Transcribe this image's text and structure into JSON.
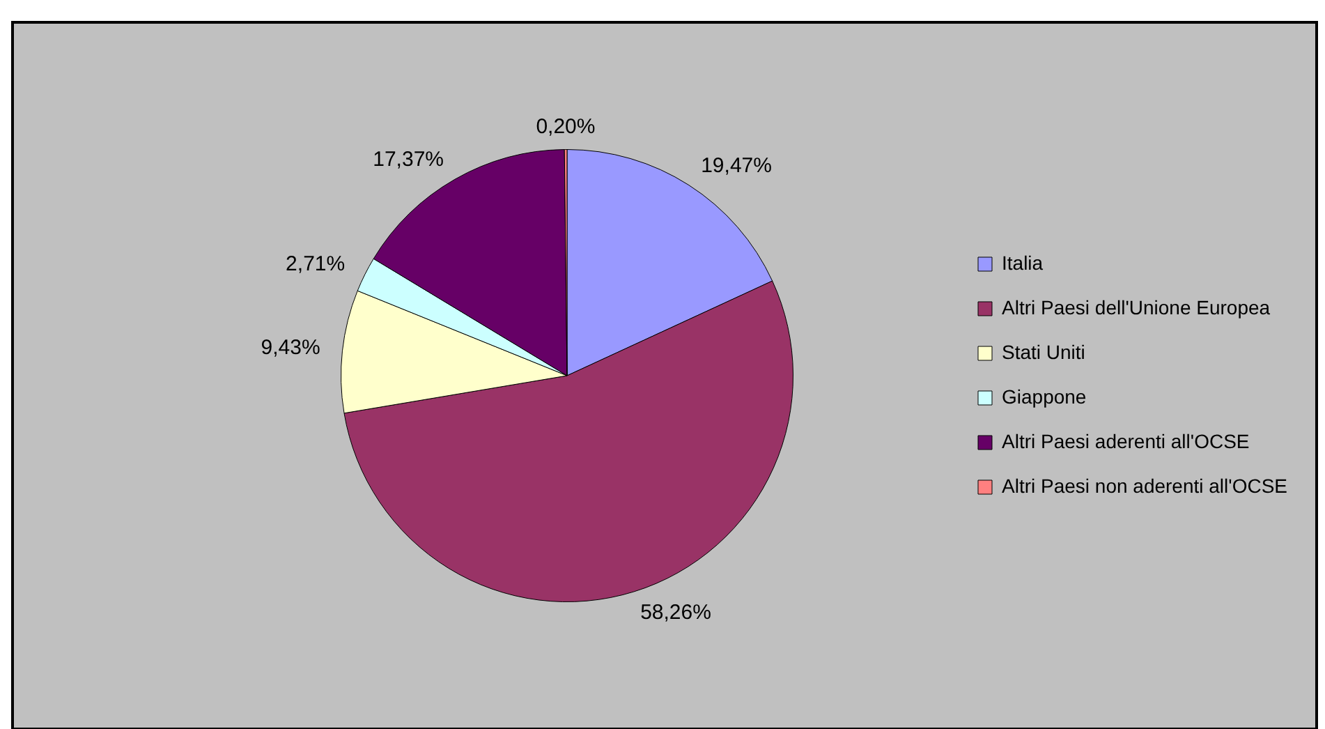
{
  "chart_data": {
    "type": "pie",
    "categories": [
      "Italia",
      "Altri Paesi dell'Unione Europea",
      "Stati Uniti",
      "Giappone",
      "Altri Paesi aderenti all'OCSE",
      "Altri Paesi non aderenti all'OCSE"
    ],
    "values": [
      19.47,
      58.26,
      9.43,
      2.71,
      17.37,
      0.2
    ],
    "value_labels": [
      "19,47%",
      "58,26%",
      "9,43%",
      "2,71%",
      "17,37%",
      "0,20%"
    ],
    "colors": [
      "#9999ff",
      "#993366",
      "#ffffcc",
      "#ccffff",
      "#660066",
      "#ff8080"
    ],
    "legend": "right"
  }
}
